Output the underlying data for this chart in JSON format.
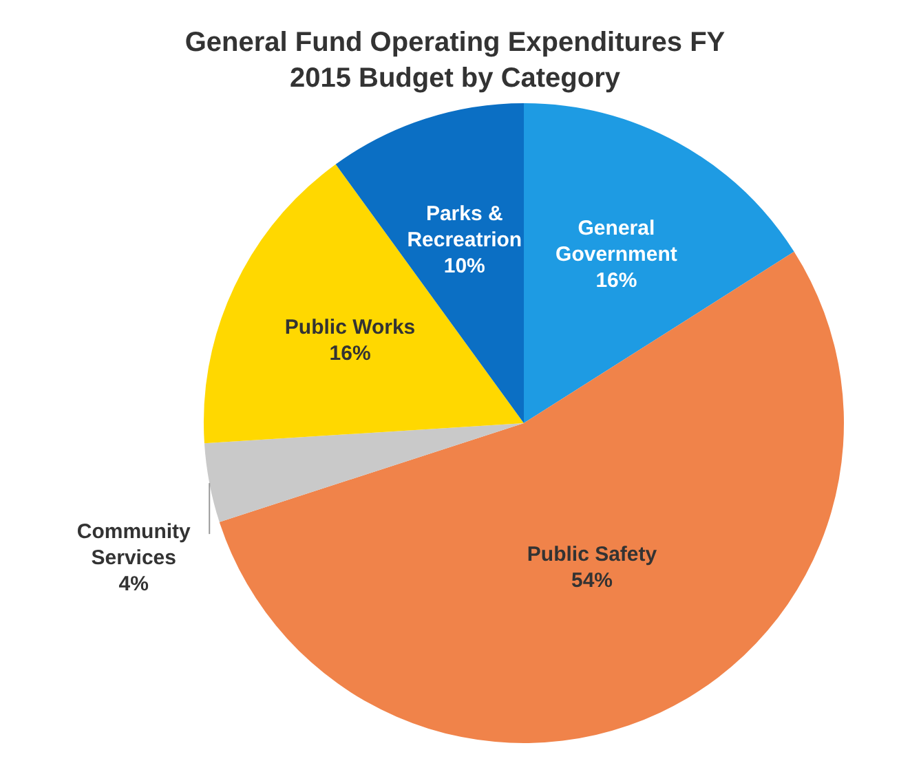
{
  "chart_data": {
    "type": "pie",
    "title": "General Fund Operating Expenditures FY 2015 Budget by Category",
    "categories": [
      "General Government",
      "Public Safety",
      "Community Services",
      "Public Works",
      "Parks & Recreatrion"
    ],
    "values": [
      16,
      54,
      4,
      16,
      10
    ],
    "colors": [
      "#1e9be3",
      "#f0834a",
      "#c9c9c9",
      "#ffd800",
      "#0b6fc4"
    ],
    "value_labels": [
      "16%",
      "54%",
      "4%",
      "16%",
      "10%"
    ],
    "legend": false
  }
}
